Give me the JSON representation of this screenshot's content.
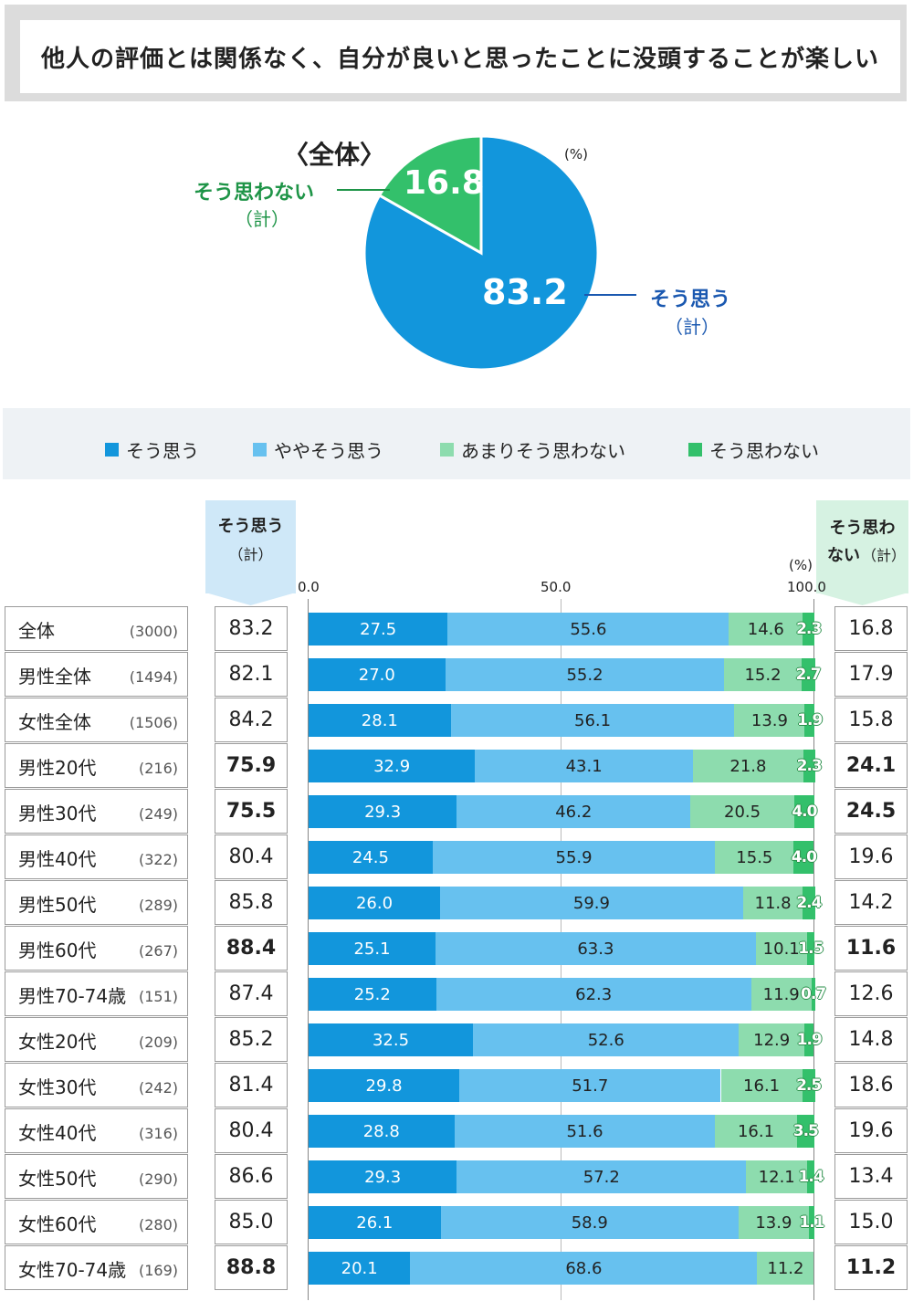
{
  "title": "他人の評価とは関係なく、自分が良いと思ったことに没頭することが楽しい",
  "pie": {
    "heading": "〈全体〉",
    "unit": "(%)",
    "yes_label": "そう思う",
    "yes_sub": "（計）",
    "no_label": "そう思わない",
    "no_sub": "（計）",
    "yes_value": "83.2",
    "no_value": "16.8"
  },
  "legend": [
    "そう思う",
    "ややそう思う",
    "あまりそう思わない",
    "そう思わない"
  ],
  "colors": {
    "c1": "#1296dc",
    "c2": "#67c1ef",
    "c3": "#8ddcae",
    "c4": "#33c06b",
    "pie_yes": "#1296dc",
    "pie_no": "#33c06b",
    "pie_no_text": "#1e9447",
    "pie_yes_text": "#1a58b0"
  },
  "headers": {
    "yes": "そう思う",
    "yes_sub": "（計）",
    "no_line1": "そう思わ",
    "no_line2": "ない",
    "no_sub": "（計）",
    "unit": "(%)"
  },
  "axis_ticks": [
    "0.0",
    "50.0",
    "100.0"
  ],
  "chart_data": {
    "type": "bar",
    "orientation": "horizontal-stacked",
    "title": "他人の評価とは関係なく、自分が良いと思ったことに没頭することが楽しい",
    "xlim": [
      0,
      100
    ],
    "series_names": [
      "そう思う",
      "ややそう思う",
      "あまりそう思わない",
      "そう思わない"
    ],
    "pie": {
      "categories": [
        "そう思う（計）",
        "そう思わない（計）"
      ],
      "values": [
        83.2,
        16.8
      ]
    },
    "rows": [
      {
        "label": "全体",
        "n": "(3000)",
        "yes": "83.2",
        "no": "16.8",
        "vals": [
          27.5,
          55.6,
          14.6,
          2.3
        ],
        "bold": false
      },
      {
        "label": "男性全体",
        "n": "(1494)",
        "yes": "82.1",
        "no": "17.9",
        "vals": [
          27.0,
          55.2,
          15.2,
          2.7
        ],
        "bold": false
      },
      {
        "label": "女性全体",
        "n": "(1506)",
        "yes": "84.2",
        "no": "15.8",
        "vals": [
          28.1,
          56.1,
          13.9,
          1.9
        ],
        "bold": false
      },
      {
        "label": "男性20代",
        "n": "(216)",
        "yes": "75.9",
        "no": "24.1",
        "vals": [
          32.9,
          43.1,
          21.8,
          2.3
        ],
        "bold": true
      },
      {
        "label": "男性30代",
        "n": "(249)",
        "yes": "75.5",
        "no": "24.5",
        "vals": [
          29.3,
          46.2,
          20.5,
          4.0
        ],
        "bold": true
      },
      {
        "label": "男性40代",
        "n": "(322)",
        "yes": "80.4",
        "no": "19.6",
        "vals": [
          24.5,
          55.9,
          15.5,
          4.0
        ],
        "bold": false
      },
      {
        "label": "男性50代",
        "n": "(289)",
        "yes": "85.8",
        "no": "14.2",
        "vals": [
          26.0,
          59.9,
          11.8,
          2.4
        ],
        "bold": false
      },
      {
        "label": "男性60代",
        "n": "(267)",
        "yes": "88.4",
        "no": "11.6",
        "vals": [
          25.1,
          63.3,
          10.1,
          1.5
        ],
        "bold": true
      },
      {
        "label": "男性70-74歳",
        "n": "(151)",
        "yes": "87.4",
        "no": "12.6",
        "vals": [
          25.2,
          62.3,
          11.9,
          0.7
        ],
        "bold": false
      },
      {
        "label": "女性20代",
        "n": "(209)",
        "yes": "85.2",
        "no": "14.8",
        "vals": [
          32.5,
          52.6,
          12.9,
          1.9
        ],
        "bold": false
      },
      {
        "label": "女性30代",
        "n": "(242)",
        "yes": "81.4",
        "no": "18.6",
        "vals": [
          29.8,
          51.7,
          16.1,
          2.5
        ],
        "bold": false
      },
      {
        "label": "女性40代",
        "n": "(316)",
        "yes": "80.4",
        "no": "19.6",
        "vals": [
          28.8,
          51.6,
          16.1,
          3.5
        ],
        "bold": false
      },
      {
        "label": "女性50代",
        "n": "(290)",
        "yes": "86.6",
        "no": "13.4",
        "vals": [
          29.3,
          57.2,
          12.1,
          1.4
        ],
        "bold": false
      },
      {
        "label": "女性60代",
        "n": "(280)",
        "yes": "85.0",
        "no": "15.0",
        "vals": [
          26.1,
          58.9,
          13.9,
          1.1
        ],
        "bold": false
      },
      {
        "label": "女性70-74歳",
        "n": "(169)",
        "yes": "88.8",
        "no": "11.2",
        "vals": [
          20.1,
          68.6,
          11.2,
          0
        ],
        "bold": true
      }
    ]
  }
}
